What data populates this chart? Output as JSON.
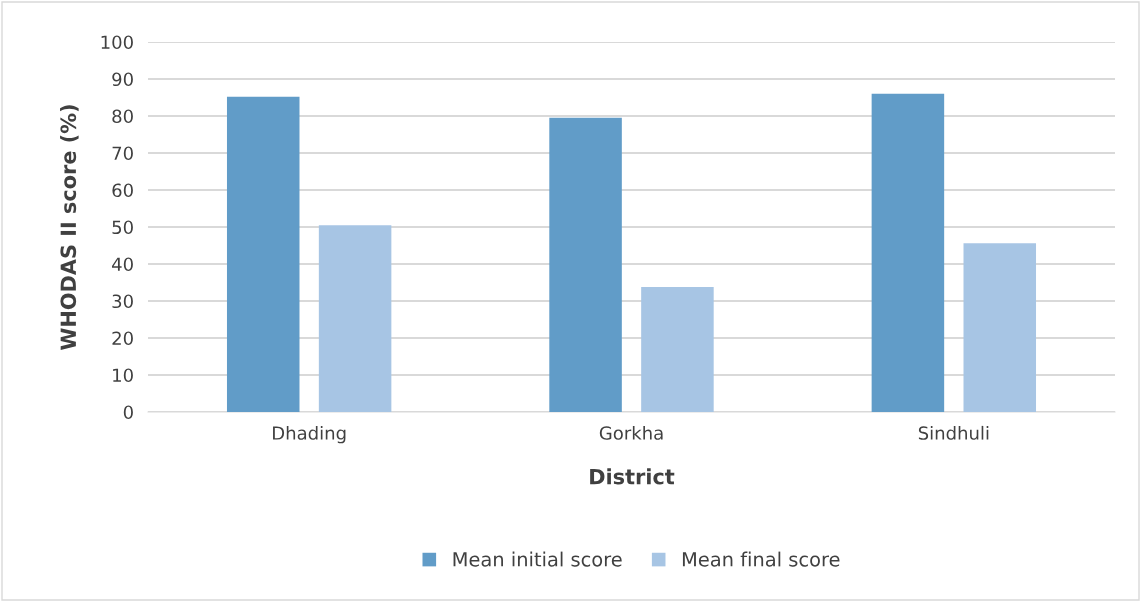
{
  "chart_data": {
    "type": "bar",
    "xlabel": "District",
    "ylabel": "WHODAS II score (%)",
    "categories": [
      "Dhading",
      "Gorkha",
      "Sindhuli"
    ],
    "series": [
      {
        "name": "Mean initial score",
        "color": "#619cc8",
        "values": [
          85.2,
          79.5,
          86.0
        ]
      },
      {
        "name": "Mean final score",
        "color": "#a7c5e4",
        "values": [
          50.5,
          33.8,
          45.6
        ]
      }
    ],
    "ylim": [
      0,
      100
    ],
    "yticks": [
      0,
      10,
      20,
      30,
      40,
      50,
      60,
      70,
      80,
      90,
      100
    ],
    "grid": "y",
    "legend": "bottom"
  }
}
